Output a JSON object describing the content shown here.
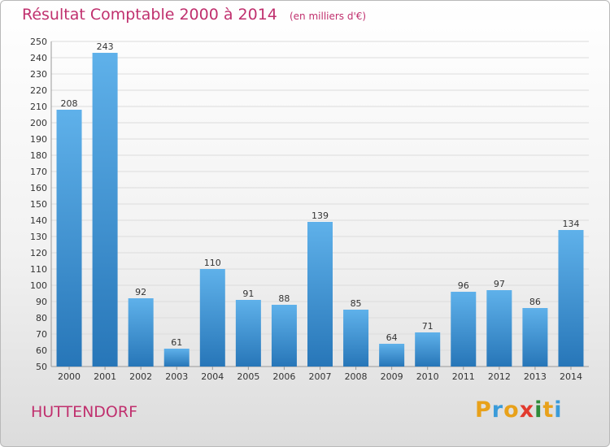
{
  "title": "Résultat Comptable 2000 à 2014",
  "subtitle": "(en milliers d'€)",
  "commune": "HUTTENDORF",
  "logo": {
    "text": "Proxiti",
    "colors": [
      "#e8a11a",
      "#3a9bd9",
      "#e8a11a",
      "#e23a2e",
      "#2e8b3a",
      "#e8a11a",
      "#3a9bd9"
    ]
  },
  "colors": {
    "title": "#c0306e",
    "bar_light": "#5fb1ea",
    "bar_dark": "#2776b8"
  },
  "chart_data": {
    "type": "bar",
    "categories": [
      "2000",
      "2001",
      "2002",
      "2003",
      "2004",
      "2005",
      "2006",
      "2007",
      "2008",
      "2009",
      "2010",
      "2011",
      "2012",
      "2013",
      "2014"
    ],
    "values": [
      208,
      243,
      92,
      61,
      110,
      91,
      88,
      139,
      85,
      64,
      71,
      96,
      97,
      86,
      134
    ],
    "ylim": [
      50,
      250
    ],
    "ytick_step": 10,
    "grid": true
  }
}
